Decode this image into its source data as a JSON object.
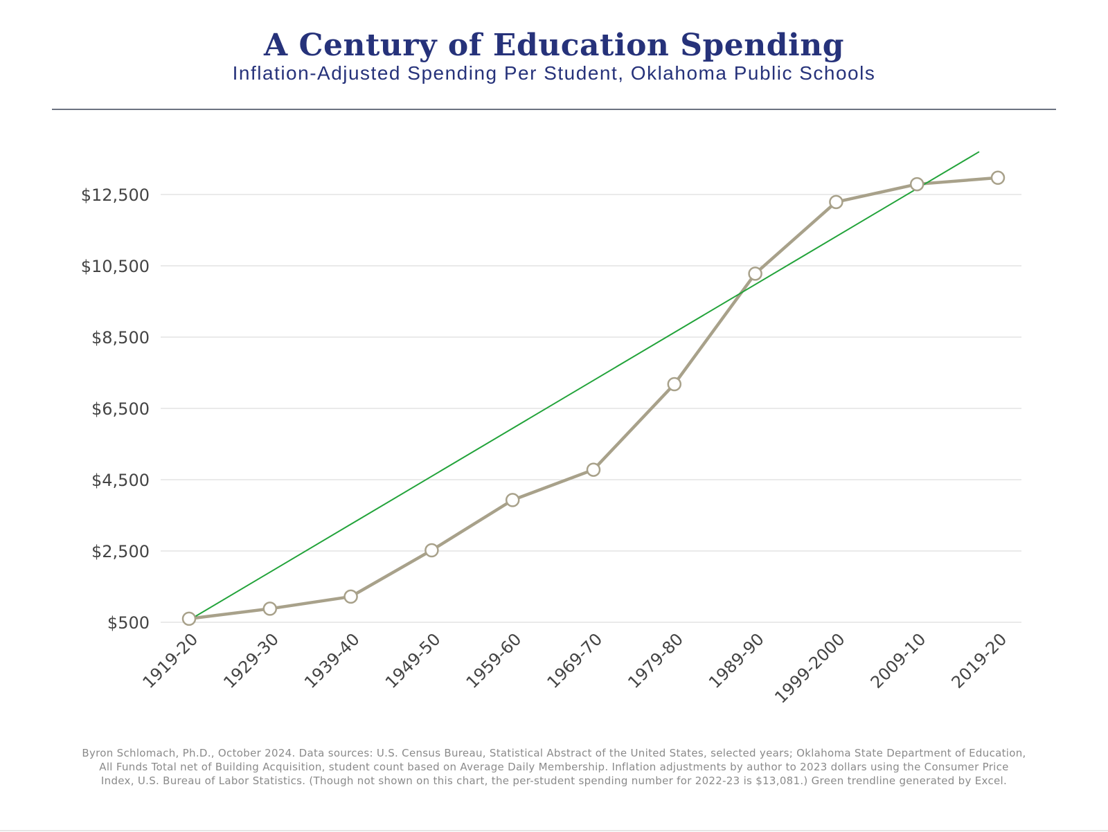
{
  "header": {
    "title": "A Century of Education Spending",
    "subtitle": "Inflation-Adjusted Spending Per Student, Oklahoma Public Schools"
  },
  "footer": {
    "source_line_1": "Byron Schlomach, Ph.D., October 2024. Data sources: U.S. Census Bureau, Statistical Abstract of the United States, selected years; Oklahoma State Department of Education,",
    "source_line_2": "All Funds Total net of Building Acquisition, student count based on Average Daily Membership. Inflation adjustments by author to 2023 dollars using the Consumer Price",
    "source_line_3": "Index, U.S. Bureau of Labor Statistics. (Though not shown on this chart, the per-student spending number for 2022-23 is $13,081.) Green trendline generated by Excel."
  },
  "colors": {
    "title": "#26327a",
    "series_line": "#a8a18a",
    "trendline": "#22a33a",
    "gridline": "#e3e3e3",
    "tick_text": "#444444"
  },
  "chart_data": {
    "type": "line",
    "title": "A Century of Education Spending",
    "subtitle": "Inflation-Adjusted Spending Per Student, Oklahoma Public Schools",
    "xlabel": "",
    "ylabel": "",
    "categories": [
      "1919-20",
      "1929-30",
      "1939-40",
      "1949-50",
      "1959-60",
      "1969-70",
      "1979-80",
      "1989-90",
      "1999-2000",
      "2009-10",
      "2019-20"
    ],
    "series": [
      {
        "values": [
          600,
          880,
          1220,
          2520,
          3930,
          4780,
          7180,
          10280,
          12290,
          12790,
          12970
        ]
      }
    ],
    "trendline": {
      "type": "linear",
      "start": 560,
      "end": 13700
    },
    "yticks": [
      500,
      2500,
      4500,
      6500,
      8500,
      10500,
      12500
    ],
    "ytick_labels": [
      "$500",
      "$2,500",
      "$4,500",
      "$6,500",
      "$8,500",
      "$10,500",
      "$12,500"
    ],
    "ylim": [
      500,
      14000
    ],
    "grid": true,
    "legend": "none",
    "x_tick_rotation": -45
  }
}
